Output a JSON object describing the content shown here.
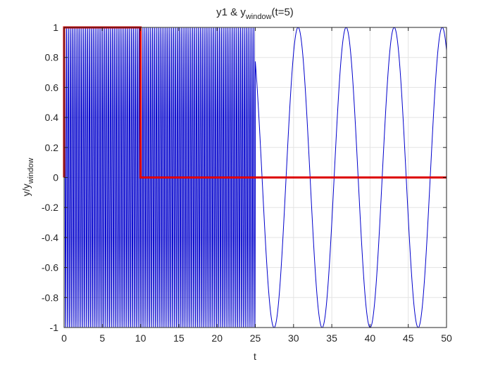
{
  "chart_data": {
    "type": "line",
    "title": {
      "prefix": "y1 & y",
      "subscript": "window",
      "suffix": "(t=5)"
    },
    "xlabel": "t",
    "ylabel": {
      "main": "y/y",
      "subscript": "window"
    },
    "xlim": [
      0,
      50
    ],
    "ylim": [
      -1,
      1
    ],
    "xticks": [
      0,
      5,
      10,
      15,
      20,
      25,
      30,
      35,
      40,
      45,
      50
    ],
    "xtick_labels": [
      "0",
      "5",
      "10",
      "15",
      "20",
      "25",
      "30",
      "35",
      "40",
      "45",
      "50"
    ],
    "yticks": [
      1,
      0.8,
      0.6,
      0.4,
      0.2,
      0,
      -0.2,
      -0.4,
      -0.6,
      -0.8,
      -1
    ],
    "ytick_labels": [
      "1",
      "0.8",
      "0.6",
      "0.4",
      "0.2",
      "0",
      "-0.2",
      "-0.4",
      "-0.6",
      "-0.8",
      "-1"
    ],
    "grid": true,
    "series": [
      {
        "color": "#0000cc",
        "stroke": 1,
        "segments": [
          {
            "t_start": 0,
            "t_end": 25,
            "amplitude": 1,
            "frequency": 4
          },
          {
            "t_start": 25,
            "t_end": 50,
            "amplitude": 1,
            "frequency": 0.1592,
            "phase": -3.9
          }
        ]
      },
      {
        "color": "#dd0000",
        "stroke": 3,
        "x": [
          0,
          0,
          10,
          10,
          50
        ],
        "y": [
          0,
          1,
          1,
          0,
          0
        ]
      }
    ]
  }
}
